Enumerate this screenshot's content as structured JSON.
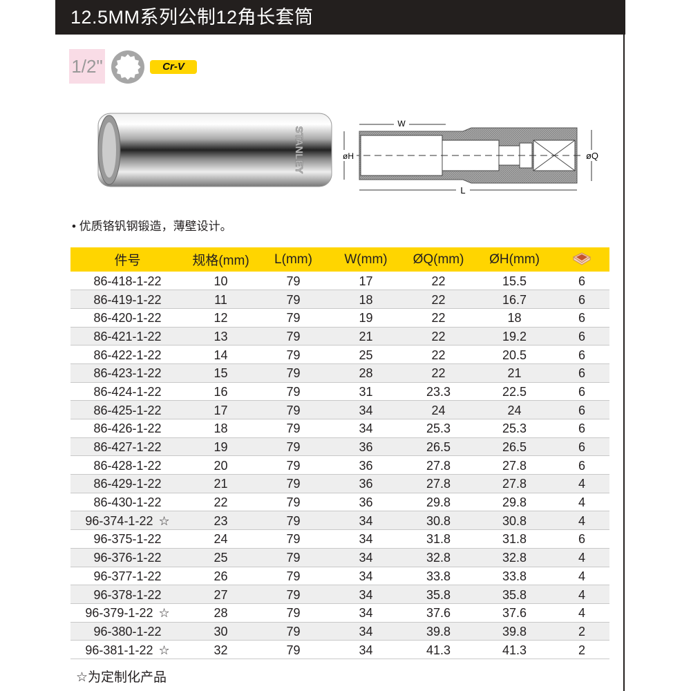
{
  "title": "12.5MM系列公制12角长套筒",
  "drive_size": "1/2\"",
  "material_badge": "Cr-V",
  "brand_logo": "STANLEY",
  "diagram_labels": {
    "w": "W",
    "l": "L",
    "h": "øH",
    "q": "øQ"
  },
  "feature": "• 优质铬钒钢锻造，薄壁设计。",
  "colors": {
    "header": "#231f1e",
    "accent": "#ffd500",
    "size_bg": "#f9dce6"
  },
  "table": {
    "headers": [
      "件号",
      "规格(mm)",
      "L(mm)",
      "W(mm)",
      "ØQ(mm)",
      "ØH(mm)"
    ],
    "package_icon": "box-icon",
    "rows": [
      {
        "part": "86-418-1-22",
        "star": "",
        "size": "10",
        "l": "79",
        "w": "17",
        "q": "22",
        "h": "15.5",
        "pack": "6"
      },
      {
        "part": "86-419-1-22",
        "star": "",
        "size": "11",
        "l": "79",
        "w": "18",
        "q": "22",
        "h": "16.7",
        "pack": "6"
      },
      {
        "part": "86-420-1-22",
        "star": "",
        "size": "12",
        "l": "79",
        "w": "19",
        "q": "22",
        "h": "18",
        "pack": "6"
      },
      {
        "part": "86-421-1-22",
        "star": "",
        "size": "13",
        "l": "79",
        "w": "21",
        "q": "22",
        "h": "19.2",
        "pack": "6"
      },
      {
        "part": "86-422-1-22",
        "star": "",
        "size": "14",
        "l": "79",
        "w": "25",
        "q": "22",
        "h": "20.5",
        "pack": "6"
      },
      {
        "part": "86-423-1-22",
        "star": "",
        "size": "15",
        "l": "79",
        "w": "28",
        "q": "22",
        "h": "21",
        "pack": "6"
      },
      {
        "part": "86-424-1-22",
        "star": "",
        "size": "16",
        "l": "79",
        "w": "31",
        "q": "23.3",
        "h": "22.5",
        "pack": "6"
      },
      {
        "part": "86-425-1-22",
        "star": "",
        "size": "17",
        "l": "79",
        "w": "34",
        "q": "24",
        "h": "24",
        "pack": "6"
      },
      {
        "part": "86-426-1-22",
        "star": "",
        "size": "18",
        "l": "79",
        "w": "34",
        "q": "25.3",
        "h": "25.3",
        "pack": "6"
      },
      {
        "part": "86-427-1-22",
        "star": "",
        "size": "19",
        "l": "79",
        "w": "36",
        "q": "26.5",
        "h": "26.5",
        "pack": "6"
      },
      {
        "part": "86-428-1-22",
        "star": "",
        "size": "20",
        "l": "79",
        "w": "36",
        "q": "27.8",
        "h": "27.8",
        "pack": "6"
      },
      {
        "part": "86-429-1-22",
        "star": "",
        "size": "21",
        "l": "79",
        "w": "36",
        "q": "27.8",
        "h": "27.8",
        "pack": "4"
      },
      {
        "part": "86-430-1-22",
        "star": "",
        "size": "22",
        "l": "79",
        "w": "36",
        "q": "29.8",
        "h": "29.8",
        "pack": "4"
      },
      {
        "part": "96-374-1-22",
        "star": "☆",
        "size": "23",
        "l": "79",
        "w": "34",
        "q": "30.8",
        "h": "30.8",
        "pack": "4"
      },
      {
        "part": "96-375-1-22",
        "star": "",
        "size": "24",
        "l": "79",
        "w": "34",
        "q": "31.8",
        "h": "31.8",
        "pack": "6"
      },
      {
        "part": "96-376-1-22",
        "star": "",
        "size": "25",
        "l": "79",
        "w": "34",
        "q": "32.8",
        "h": "32.8",
        "pack": "4"
      },
      {
        "part": "96-377-1-22",
        "star": "",
        "size": "26",
        "l": "79",
        "w": "34",
        "q": "33.8",
        "h": "33.8",
        "pack": "4"
      },
      {
        "part": "96-378-1-22",
        "star": "",
        "size": "27",
        "l": "79",
        "w": "34",
        "q": "35.8",
        "h": "35.8",
        "pack": "4"
      },
      {
        "part": "96-379-1-22",
        "star": "☆",
        "size": "28",
        "l": "79",
        "w": "34",
        "q": "37.6",
        "h": "37.6",
        "pack": "4"
      },
      {
        "part": "96-380-1-22",
        "star": "",
        "size": "30",
        "l": "79",
        "w": "34",
        "q": "39.8",
        "h": "39.8",
        "pack": "2"
      },
      {
        "part": "96-381-1-22",
        "star": "☆",
        "size": "32",
        "l": "79",
        "w": "34",
        "q": "41.3",
        "h": "41.3",
        "pack": "2"
      }
    ]
  },
  "footnote": "☆为定制化产品"
}
